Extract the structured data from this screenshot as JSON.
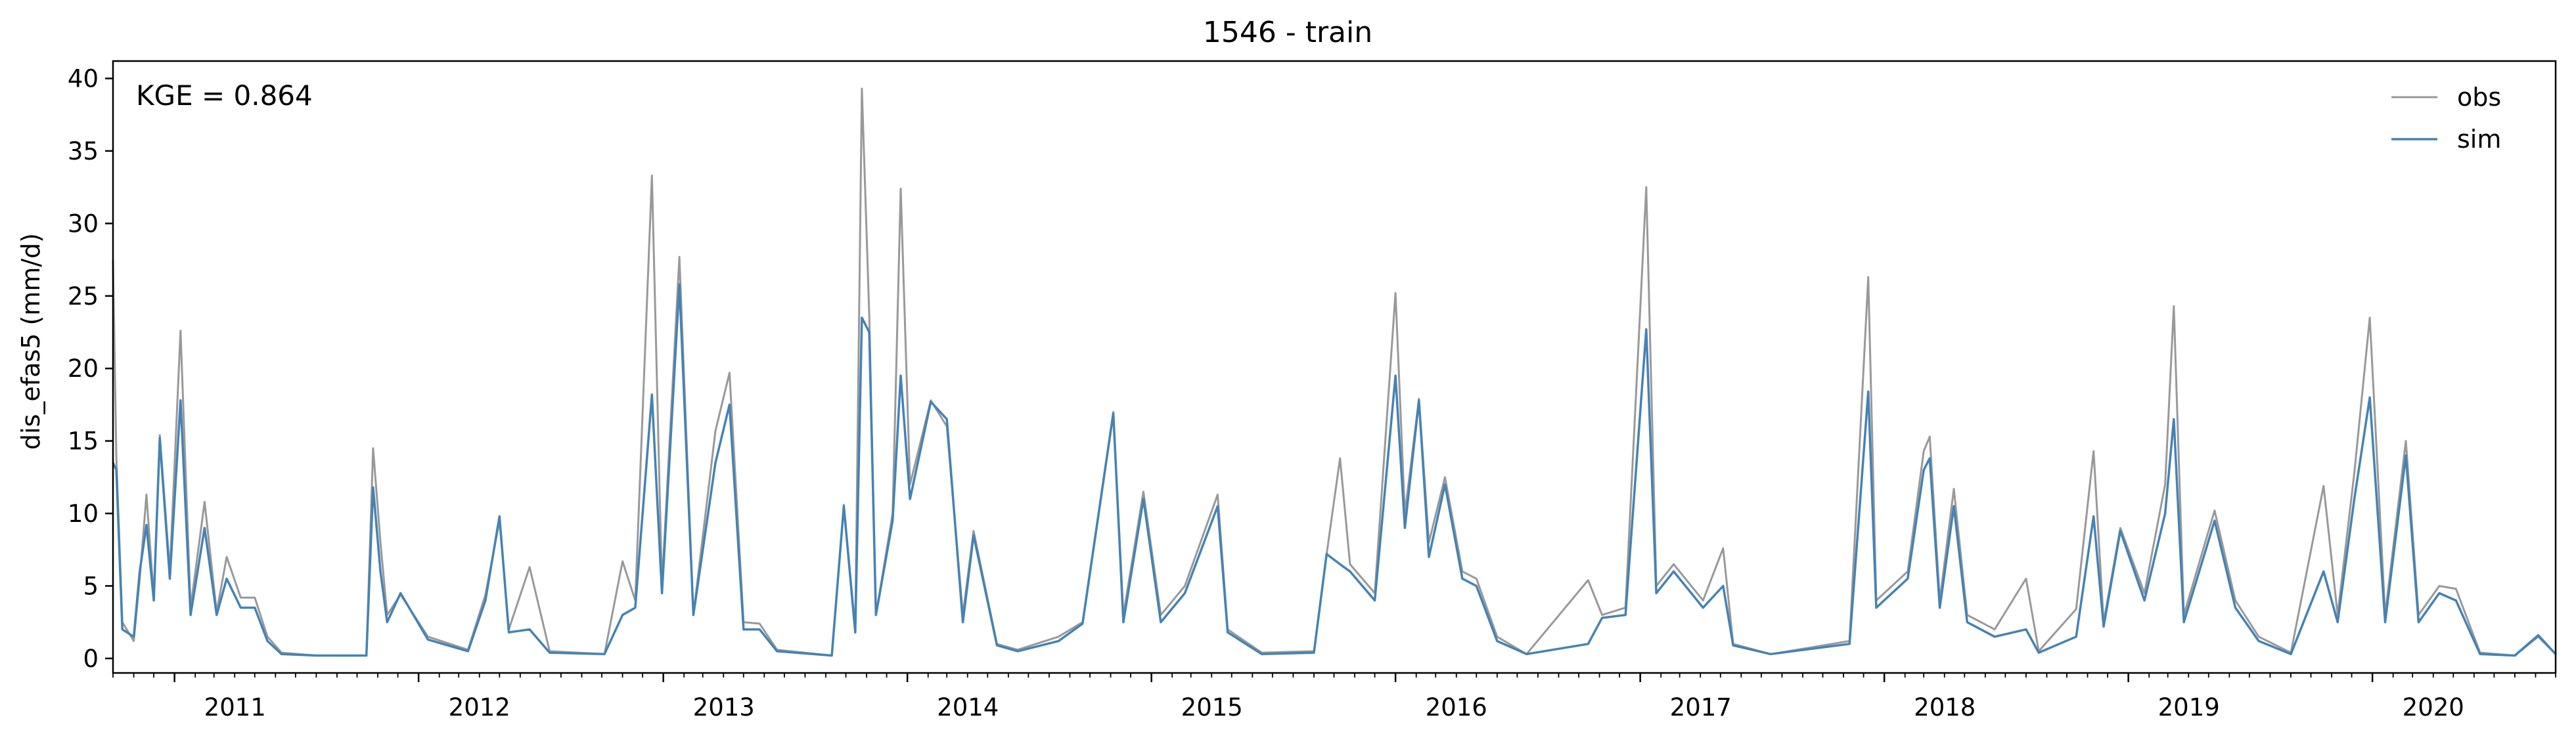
{
  "chart_data": {
    "type": "line",
    "title": "1546 - train",
    "xlabel": "",
    "ylabel": "dis_efas5 (mm/d)",
    "annotation": "KGE = 0.864",
    "legend": {
      "placement": "top-right",
      "entries": [
        {
          "name": "obs",
          "color": "#999999"
        },
        {
          "name": "sim",
          "color": "#4682b4"
        }
      ]
    },
    "xlim": [
      "2010-10-01",
      "2020-10-01"
    ],
    "ylim": [
      -1,
      41.2
    ],
    "yticks": [
      0,
      5,
      10,
      15,
      20,
      25,
      30,
      35,
      40
    ],
    "x_ticks": [
      {
        "label": "2011",
        "date": "2011-01-01"
      },
      {
        "label": "2012",
        "date": "2012-01-01"
      },
      {
        "label": "2013",
        "date": "2013-01-01"
      },
      {
        "label": "2014",
        "date": "2014-01-01"
      },
      {
        "label": "2015",
        "date": "2015-01-01"
      },
      {
        "label": "2016",
        "date": "2016-01-01"
      },
      {
        "label": "2017",
        "date": "2017-01-01"
      },
      {
        "label": "2018",
        "date": "2018-01-01"
      },
      {
        "label": "2019",
        "date": "2019-01-01"
      },
      {
        "label": "2020",
        "date": "2020-01-01"
      }
    ],
    "grid": false,
    "series": [
      {
        "name": "obs",
        "color": "#999999",
        "points": [
          [
            "2010-10-01",
            27.5
          ],
          [
            "2010-10-06",
            13.8
          ],
          [
            "2010-10-15",
            2.5
          ],
          [
            "2010-11-01",
            1.2
          ],
          [
            "2010-11-10",
            5.5
          ],
          [
            "2010-11-20",
            11.3
          ],
          [
            "2010-12-01",
            4.2
          ],
          [
            "2010-12-10",
            15.4
          ],
          [
            "2010-12-25",
            6.0
          ],
          [
            "2011-01-10",
            22.6
          ],
          [
            "2011-01-25",
            3.5
          ],
          [
            "2011-02-15",
            10.8
          ],
          [
            "2011-03-05",
            3.2
          ],
          [
            "2011-03-20",
            7.0
          ],
          [
            "2011-04-10",
            4.2
          ],
          [
            "2011-05-01",
            4.2
          ],
          [
            "2011-05-20",
            1.5
          ],
          [
            "2011-06-10",
            0.4
          ],
          [
            "2011-08-01",
            0.2
          ],
          [
            "2011-10-15",
            0.2
          ],
          [
            "2011-10-25",
            14.5
          ],
          [
            "2011-11-05",
            8.0
          ],
          [
            "2011-11-15",
            3.0
          ],
          [
            "2011-12-05",
            4.4
          ],
          [
            "2012-01-15",
            1.5
          ],
          [
            "2012-03-15",
            0.6
          ],
          [
            "2012-04-10",
            4.4
          ],
          [
            "2012-05-01",
            9.5
          ],
          [
            "2012-05-15",
            2.0
          ],
          [
            "2012-06-15",
            6.3
          ],
          [
            "2012-07-15",
            0.5
          ],
          [
            "2012-10-05",
            0.3
          ],
          [
            "2012-11-01",
            6.7
          ],
          [
            "2012-11-20",
            4.0
          ],
          [
            "2012-12-15",
            33.3
          ],
          [
            "2012-12-30",
            5.0
          ],
          [
            "2013-01-25",
            27.7
          ],
          [
            "2013-02-15",
            3.0
          ],
          [
            "2013-03-20",
            15.7
          ],
          [
            "2013-04-10",
            19.7
          ],
          [
            "2013-05-01",
            2.5
          ],
          [
            "2013-05-25",
            2.4
          ],
          [
            "2013-06-20",
            0.6
          ],
          [
            "2013-09-10",
            0.2
          ],
          [
            "2013-09-28",
            10.6
          ],
          [
            "2013-10-15",
            2.0
          ],
          [
            "2013-10-25",
            39.3
          ],
          [
            "2013-11-05",
            23.7
          ],
          [
            "2013-11-15",
            3.0
          ],
          [
            "2013-12-10",
            10.0
          ],
          [
            "2013-12-22",
            32.4
          ],
          [
            "2014-01-05",
            12.0
          ],
          [
            "2014-02-05",
            17.8
          ],
          [
            "2014-03-01",
            16.0
          ],
          [
            "2014-03-25",
            3.0
          ],
          [
            "2014-04-10",
            8.8
          ],
          [
            "2014-05-15",
            1.0
          ],
          [
            "2014-06-15",
            0.6
          ],
          [
            "2014-08-15",
            1.5
          ],
          [
            "2014-09-20",
            2.5
          ],
          [
            "2014-11-05",
            17.0
          ],
          [
            "2014-11-20",
            3.0
          ],
          [
            "2014-12-20",
            11.5
          ],
          [
            "2015-01-15",
            3.0
          ],
          [
            "2015-02-20",
            5.0
          ],
          [
            "2015-04-10",
            11.3
          ],
          [
            "2015-04-25",
            2.0
          ],
          [
            "2015-06-15",
            0.4
          ],
          [
            "2015-09-01",
            0.5
          ],
          [
            "2015-09-20",
            7.2
          ],
          [
            "2015-10-10",
            13.8
          ],
          [
            "2015-10-25",
            6.5
          ],
          [
            "2015-12-01",
            4.5
          ],
          [
            "2016-01-01",
            25.2
          ],
          [
            "2016-01-15",
            10.0
          ],
          [
            "2016-02-05",
            17.9
          ],
          [
            "2016-02-20",
            8.0
          ],
          [
            "2016-03-15",
            12.5
          ],
          [
            "2016-04-10",
            6.0
          ],
          [
            "2016-05-01",
            5.5
          ],
          [
            "2016-06-01",
            1.5
          ],
          [
            "2016-07-15",
            0.3
          ],
          [
            "2016-10-15",
            5.4
          ],
          [
            "2016-11-05",
            3.0
          ],
          [
            "2016-12-10",
            3.5
          ],
          [
            "2017-01-10",
            32.5
          ],
          [
            "2017-01-25",
            5.0
          ],
          [
            "2017-02-20",
            6.5
          ],
          [
            "2017-04-05",
            4.0
          ],
          [
            "2017-05-05",
            7.6
          ],
          [
            "2017-05-20",
            1.0
          ],
          [
            "2017-07-15",
            0.3
          ],
          [
            "2017-11-10",
            1.2
          ],
          [
            "2017-12-08",
            26.3
          ],
          [
            "2017-12-20",
            4.0
          ],
          [
            "2018-02-05",
            6.0
          ],
          [
            "2018-03-01",
            14.3
          ],
          [
            "2018-03-10",
            15.3
          ],
          [
            "2018-03-25",
            4.0
          ],
          [
            "2018-04-15",
            11.7
          ],
          [
            "2018-05-05",
            3.0
          ],
          [
            "2018-06-15",
            2.0
          ],
          [
            "2018-08-01",
            5.5
          ],
          [
            "2018-08-20",
            0.5
          ],
          [
            "2018-10-15",
            3.4
          ],
          [
            "2018-11-10",
            14.3
          ],
          [
            "2018-11-25",
            2.5
          ],
          [
            "2018-12-20",
            9.0
          ],
          [
            "2019-01-25",
            4.5
          ],
          [
            "2019-02-25",
            12.0
          ],
          [
            "2019-03-10",
            24.3
          ],
          [
            "2019-03-25",
            3.0
          ],
          [
            "2019-05-10",
            10.2
          ],
          [
            "2019-06-10",
            4.0
          ],
          [
            "2019-07-15",
            1.5
          ],
          [
            "2019-09-01",
            0.4
          ],
          [
            "2019-10-20",
            11.9
          ],
          [
            "2019-11-10",
            3.0
          ],
          [
            "2019-12-05",
            12.8
          ],
          [
            "2019-12-28",
            23.5
          ],
          [
            "2020-01-20",
            3.0
          ],
          [
            "2020-02-20",
            15.0
          ],
          [
            "2020-03-10",
            3.0
          ],
          [
            "2020-04-10",
            5.0
          ],
          [
            "2020-05-05",
            4.8
          ],
          [
            "2020-06-10",
            0.4
          ],
          [
            "2020-08-01",
            0.2
          ],
          [
            "2020-09-05",
            1.5
          ],
          [
            "2020-10-01",
            0.3
          ]
        ]
      },
      {
        "name": "sim",
        "color": "#4682b4",
        "points": [
          [
            "2010-10-01",
            13.5
          ],
          [
            "2010-10-06",
            13.0
          ],
          [
            "2010-10-15",
            2.0
          ],
          [
            "2010-11-01",
            1.5
          ],
          [
            "2010-11-10",
            6.0
          ],
          [
            "2010-11-20",
            9.2
          ],
          [
            "2010-12-01",
            4.0
          ],
          [
            "2010-12-10",
            15.2
          ],
          [
            "2010-12-25",
            5.5
          ],
          [
            "2011-01-10",
            17.8
          ],
          [
            "2011-01-25",
            3.0
          ],
          [
            "2011-02-15",
            9.0
          ],
          [
            "2011-03-05",
            3.0
          ],
          [
            "2011-03-20",
            5.5
          ],
          [
            "2011-04-10",
            3.5
          ],
          [
            "2011-05-01",
            3.5
          ],
          [
            "2011-05-20",
            1.2
          ],
          [
            "2011-06-10",
            0.3
          ],
          [
            "2011-08-01",
            0.2
          ],
          [
            "2011-10-15",
            0.2
          ],
          [
            "2011-10-25",
            11.8
          ],
          [
            "2011-11-05",
            6.0
          ],
          [
            "2011-11-15",
            2.5
          ],
          [
            "2011-12-05",
            4.5
          ],
          [
            "2012-01-15",
            1.3
          ],
          [
            "2012-03-15",
            0.5
          ],
          [
            "2012-04-10",
            4.0
          ],
          [
            "2012-05-01",
            9.8
          ],
          [
            "2012-05-15",
            1.8
          ],
          [
            "2012-06-15",
            2.0
          ],
          [
            "2012-07-15",
            0.4
          ],
          [
            "2012-10-05",
            0.3
          ],
          [
            "2012-11-01",
            3.0
          ],
          [
            "2012-11-20",
            3.5
          ],
          [
            "2012-12-15",
            18.2
          ],
          [
            "2012-12-30",
            4.5
          ],
          [
            "2013-01-25",
            25.8
          ],
          [
            "2013-02-15",
            3.0
          ],
          [
            "2013-03-20",
            13.5
          ],
          [
            "2013-04-10",
            17.5
          ],
          [
            "2013-05-01",
            2.0
          ],
          [
            "2013-05-25",
            2.0
          ],
          [
            "2013-06-20",
            0.5
          ],
          [
            "2013-09-10",
            0.2
          ],
          [
            "2013-09-28",
            10.5
          ],
          [
            "2013-10-15",
            1.8
          ],
          [
            "2013-10-25",
            23.5
          ],
          [
            "2013-11-05",
            22.5
          ],
          [
            "2013-11-15",
            3.0
          ],
          [
            "2013-12-10",
            9.5
          ],
          [
            "2013-12-22",
            19.5
          ],
          [
            "2014-01-05",
            11.0
          ],
          [
            "2014-02-05",
            17.7
          ],
          [
            "2014-03-01",
            16.5
          ],
          [
            "2014-03-25",
            2.5
          ],
          [
            "2014-04-10",
            8.5
          ],
          [
            "2014-05-15",
            0.9
          ],
          [
            "2014-06-15",
            0.5
          ],
          [
            "2014-08-15",
            1.2
          ],
          [
            "2014-09-20",
            2.4
          ],
          [
            "2014-11-05",
            16.9
          ],
          [
            "2014-11-20",
            2.5
          ],
          [
            "2014-12-20",
            11.0
          ],
          [
            "2015-01-15",
            2.5
          ],
          [
            "2015-02-20",
            4.5
          ],
          [
            "2015-04-10",
            10.5
          ],
          [
            "2015-04-25",
            1.8
          ],
          [
            "2015-06-15",
            0.3
          ],
          [
            "2015-09-01",
            0.4
          ],
          [
            "2015-09-20",
            7.2
          ],
          [
            "2015-10-10",
            6.5
          ],
          [
            "2015-10-25",
            6.0
          ],
          [
            "2015-12-01",
            4.0
          ],
          [
            "2016-01-01",
            19.5
          ],
          [
            "2016-01-15",
            9.0
          ],
          [
            "2016-02-05",
            17.8
          ],
          [
            "2016-02-20",
            7.0
          ],
          [
            "2016-03-15",
            12.0
          ],
          [
            "2016-04-10",
            5.5
          ],
          [
            "2016-05-01",
            5.0
          ],
          [
            "2016-06-01",
            1.2
          ],
          [
            "2016-07-15",
            0.3
          ],
          [
            "2016-10-15",
            1.0
          ],
          [
            "2016-11-05",
            2.8
          ],
          [
            "2016-12-10",
            3.0
          ],
          [
            "2017-01-10",
            22.7
          ],
          [
            "2017-01-25",
            4.5
          ],
          [
            "2017-02-20",
            6.0
          ],
          [
            "2017-04-05",
            3.5
          ],
          [
            "2017-05-05",
            5.0
          ],
          [
            "2017-05-20",
            0.9
          ],
          [
            "2017-07-15",
            0.3
          ],
          [
            "2017-11-10",
            1.0
          ],
          [
            "2017-12-08",
            18.4
          ],
          [
            "2017-12-20",
            3.5
          ],
          [
            "2018-02-05",
            5.5
          ],
          [
            "2018-03-01",
            13.0
          ],
          [
            "2018-03-10",
            13.8
          ],
          [
            "2018-03-25",
            3.5
          ],
          [
            "2018-04-15",
            10.5
          ],
          [
            "2018-05-05",
            2.5
          ],
          [
            "2018-06-15",
            1.5
          ],
          [
            "2018-08-01",
            2.0
          ],
          [
            "2018-08-20",
            0.4
          ],
          [
            "2018-10-15",
            1.5
          ],
          [
            "2018-11-10",
            9.8
          ],
          [
            "2018-11-25",
            2.2
          ],
          [
            "2018-12-20",
            8.8
          ],
          [
            "2019-01-25",
            4.0
          ],
          [
            "2019-02-25",
            10.0
          ],
          [
            "2019-03-10",
            16.5
          ],
          [
            "2019-03-25",
            2.5
          ],
          [
            "2019-05-10",
            9.5
          ],
          [
            "2019-06-10",
            3.5
          ],
          [
            "2019-07-15",
            1.2
          ],
          [
            "2019-09-01",
            0.3
          ],
          [
            "2019-10-20",
            6.0
          ],
          [
            "2019-11-10",
            2.5
          ],
          [
            "2019-12-05",
            11.0
          ],
          [
            "2019-12-28",
            18.0
          ],
          [
            "2020-01-20",
            2.5
          ],
          [
            "2020-02-20",
            14.0
          ],
          [
            "2020-03-10",
            2.5
          ],
          [
            "2020-04-10",
            4.5
          ],
          [
            "2020-05-05",
            4.0
          ],
          [
            "2020-06-10",
            0.3
          ],
          [
            "2020-08-01",
            0.2
          ],
          [
            "2020-09-05",
            1.6
          ],
          [
            "2020-10-01",
            0.3
          ]
        ]
      }
    ]
  }
}
